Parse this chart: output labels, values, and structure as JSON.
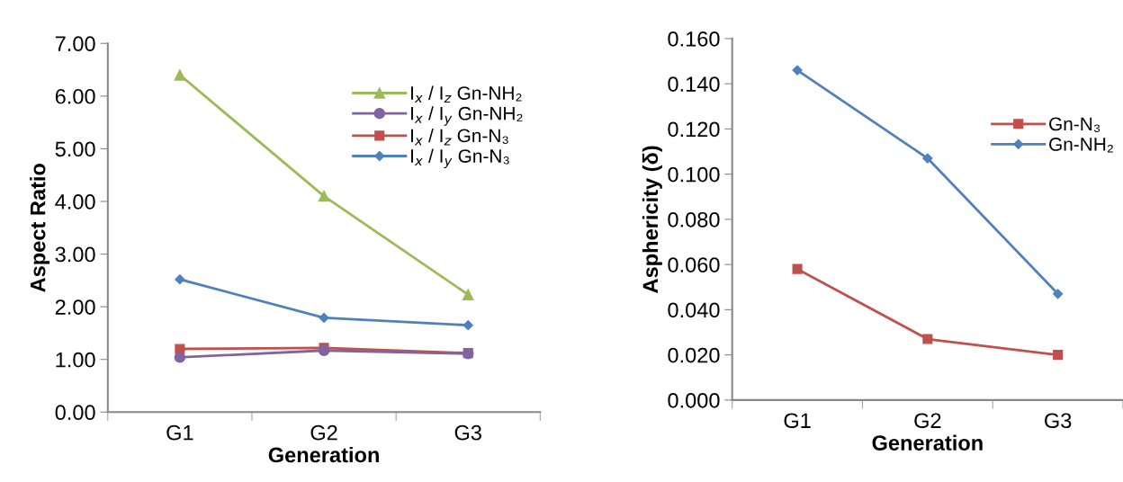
{
  "chart_data": [
    {
      "type": "line",
      "categories": [
        "G1",
        "G2",
        "G3"
      ],
      "xlabel": "Generation",
      "ylabel": "Aspect Ratio",
      "ylim": [
        0,
        7
      ],
      "yticks": [
        {
          "value": 0,
          "label": "0.00"
        },
        {
          "value": 1,
          "label": "1.00"
        },
        {
          "value": 2,
          "label": "2.00"
        },
        {
          "value": 3,
          "label": "3.00"
        },
        {
          "value": 4,
          "label": "4.00"
        },
        {
          "value": 5,
          "label": "5.00"
        },
        {
          "value": 6,
          "label": "6.00"
        },
        {
          "value": 7,
          "label": "7.00"
        }
      ],
      "legend": "top right",
      "grid": false,
      "series": [
        {
          "name": "I$_{x}$ / I$_{z}$ Gn-NH₂",
          "color": "#9bbb59",
          "marker": "triangle",
          "values": [
            6.4,
            4.1,
            2.23
          ]
        },
        {
          "name": "I$_{x}$ / I$_{y}$ Gn-NH₂",
          "color": "#8064a2",
          "marker": "circle",
          "values": [
            1.04,
            1.17,
            1.11
          ]
        },
        {
          "name": "I$_{x}$ / I$_{z}$ Gn-N₃",
          "color": "#c0504d",
          "marker": "square",
          "values": [
            1.2,
            1.22,
            1.12
          ]
        },
        {
          "name": "I$_{x}$ / I$_{y}$ Gn-N₃",
          "color": "#4f81bd",
          "marker": "diamond",
          "values": [
            2.52,
            1.79,
            1.65
          ]
        }
      ]
    },
    {
      "type": "line",
      "categories": [
        "G1",
        "G2",
        "G3"
      ],
      "xlabel": "Generation",
      "ylabel": "Asphericity (δ)",
      "ylim": [
        0,
        0.16
      ],
      "yticks": [
        {
          "value": 0,
          "label": "0.000"
        },
        {
          "value": 0.02,
          "label": "0.020"
        },
        {
          "value": 0.04,
          "label": "0.040"
        },
        {
          "value": 0.06,
          "label": "0.060"
        },
        {
          "value": 0.08,
          "label": "0.080"
        },
        {
          "value": 0.1,
          "label": "0.100"
        },
        {
          "value": 0.12,
          "label": "0.120"
        },
        {
          "value": 0.14,
          "label": "0.140"
        },
        {
          "value": 0.16,
          "label": "0.160"
        }
      ],
      "legend": "top right",
      "grid": false,
      "series": [
        {
          "name": "Gn-N₃",
          "color": "#c0504d",
          "marker": "square",
          "values": [
            0.058,
            0.027,
            0.02
          ]
        },
        {
          "name": "Gn-NH₂",
          "color": "#4f81bd",
          "marker": "diamond",
          "values": [
            0.146,
            0.107,
            0.047
          ]
        }
      ]
    }
  ]
}
